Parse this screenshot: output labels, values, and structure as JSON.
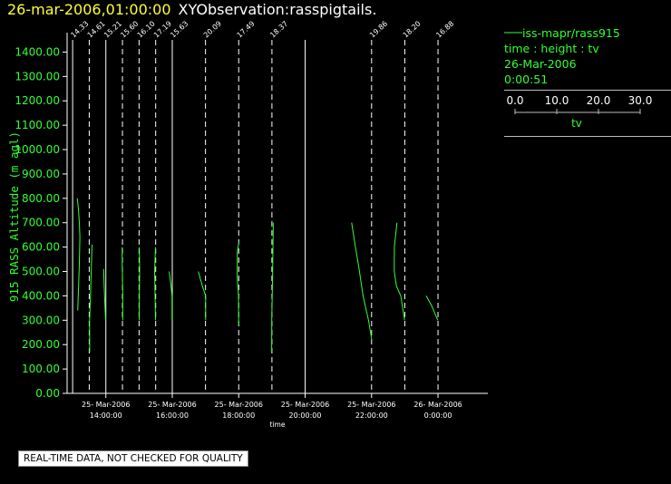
{
  "header": {
    "datetime": "26-mar-2006,01:00:00",
    "title": "XYObservation:rasspigtails."
  },
  "legend": {
    "series": "iss-mapr/rass915",
    "axes": "time : height : tv",
    "date": "26-Mar-2006",
    "time": "0:00:51",
    "scale_ticks": [
      "0.0",
      "10.0",
      "20.0",
      "30.0"
    ],
    "scale_label": "tv"
  },
  "note": "REAL-TIME DATA, NOT CHECKED FOR QUALITY",
  "colors": {
    "trace": "#33ff33",
    "axis": "#ffffff",
    "date_text": "#ffff33"
  },
  "chart_data": {
    "type": "line",
    "xlabel": "time",
    "ylabel": "915 RASS Altitude (m agl)",
    "xlim": [
      "25-Mar-2006 12:50",
      "26-Mar-2006 01:30"
    ],
    "ylim": [
      0,
      1450
    ],
    "y_ticks": [
      0,
      100,
      200,
      300,
      400,
      500,
      600,
      700,
      800,
      900,
      1000,
      1100,
      1200,
      1300,
      1400
    ],
    "y_tick_labels": [
      "0.00",
      "100.00",
      "200.00",
      "300.00",
      "400.00",
      "500.00",
      "600.00",
      "700.00",
      "800.00",
      "900.00",
      "1000.00",
      "1100.00",
      "1200.00",
      "1300.00",
      "1400.00"
    ],
    "x_ticks": [
      {
        "time": "25-Mar-2006 14:00",
        "date": "25-Mar-2006",
        "label": "14:00:00"
      },
      {
        "time": "25-Mar-2006 16:00",
        "date": "25-Mar-2006",
        "label": "16:00:00"
      },
      {
        "time": "25-Mar-2006 18:00",
        "date": "25-Mar-2006",
        "label": "18:00:00"
      },
      {
        "time": "25-Mar-2006 20:00",
        "date": "25-Mar-2006",
        "label": "20:00:00"
      },
      {
        "time": "25-Mar-2006 22:00",
        "date": "25-Mar-2006",
        "label": "22:00:00"
      },
      {
        "time": "26-Mar-2006 00:00",
        "date": "26-Mar-2006",
        "label": "0:00:00"
      }
    ],
    "baselines": [
      {
        "time": "25-Mar-2006 13:00",
        "label": "14.33",
        "dashed": false
      },
      {
        "time": "25-Mar-2006 13:30",
        "label": "14.61",
        "dashed": true
      },
      {
        "time": "25-Mar-2006 14:00",
        "label": "15.21",
        "dashed": false
      },
      {
        "time": "25-Mar-2006 14:30",
        "label": "15.60",
        "dashed": true
      },
      {
        "time": "25-Mar-2006 15:00",
        "label": "16.10",
        "dashed": true
      },
      {
        "time": "25-Mar-2006 15:30",
        "label": "17.19",
        "dashed": true
      },
      {
        "time": "25-Mar-2006 16:00",
        "label": "15.63",
        "dashed": false
      },
      {
        "time": "25-Mar-2006 17:00",
        "label": "20.09",
        "dashed": true
      },
      {
        "time": "25-Mar-2006 18:00",
        "label": "17.49",
        "dashed": true
      },
      {
        "time": "25-Mar-2006 19:00",
        "label": "18.37",
        "dashed": true
      },
      {
        "time": "25-Mar-2006 20:00",
        "label": "",
        "dashed": false
      },
      {
        "time": "25-Mar-2006 22:00",
        "label": "19.86",
        "dashed": true
      },
      {
        "time": "25-Mar-2006 23:00",
        "label": "18.20",
        "dashed": true
      },
      {
        "time": "26-Mar-2006 00:00",
        "label": "16.88",
        "dashed": true
      }
    ],
    "series": [
      {
        "time": "25-Mar-2006 13:00",
        "points": [
          [
            19.0,
            340
          ],
          [
            19.6,
            410
          ],
          [
            20.4,
            520
          ],
          [
            21.0,
            640
          ],
          [
            20.5,
            700
          ],
          [
            19.6,
            760
          ],
          [
            18.6,
            800
          ]
        ]
      },
      {
        "time": "25-Mar-2006 13:30",
        "points": [
          [
            15.0,
            170
          ],
          [
            14.9,
            300
          ],
          [
            15.8,
            400
          ],
          [
            16.6,
            520
          ],
          [
            17.2,
            610
          ]
        ]
      },
      {
        "time": "25-Mar-2006 14:00",
        "points": [
          [
            15.0,
            300
          ],
          [
            14.2,
            380
          ],
          [
            13.6,
            450
          ],
          [
            13.2,
            510
          ]
        ]
      },
      {
        "time": "25-Mar-2006 14:30",
        "points": [
          [
            15.9,
            300
          ],
          [
            15.9,
            400
          ],
          [
            15.5,
            500
          ],
          [
            15.3,
            600
          ]
        ]
      },
      {
        "time": "25-Mar-2006 15:00",
        "points": [
          [
            16.2,
            300
          ],
          [
            16.4,
            400
          ],
          [
            16.6,
            500
          ],
          [
            16.4,
            600
          ]
        ]
      },
      {
        "time": "25-Mar-2006 15:30",
        "points": [
          [
            17.0,
            300
          ],
          [
            16.6,
            400
          ],
          [
            16.2,
            500
          ],
          [
            17.0,
            600
          ]
        ]
      },
      {
        "time": "25-Mar-2006 16:00",
        "points": [
          [
            15.4,
            300
          ],
          [
            15.4,
            400
          ],
          [
            14.2,
            450
          ],
          [
            12.8,
            500
          ]
        ]
      },
      {
        "time": "25-Mar-2006 17:00",
        "points": [
          [
            20.2,
            300
          ],
          [
            20.2,
            400
          ],
          [
            18.0,
            430
          ],
          [
            15.3,
            470
          ],
          [
            13.5,
            500
          ]
        ]
      },
      {
        "time": "25-Mar-2006 18:00",
        "points": [
          [
            17.4,
            280
          ],
          [
            17.3,
            400
          ],
          [
            16.1,
            480
          ],
          [
            16.2,
            580
          ],
          [
            17.6,
            620
          ]
        ]
      },
      {
        "time": "25-Mar-2006 19:00",
        "points": [
          [
            18.1,
            170
          ],
          [
            18.2,
            300
          ],
          [
            18.8,
            430
          ],
          [
            19.2,
            560
          ],
          [
            19.6,
            700
          ]
        ]
      },
      {
        "time": "25-Mar-2006 22:00",
        "points": [
          [
            20.0,
            220
          ],
          [
            17.0,
            300
          ],
          [
            12.0,
            400
          ],
          [
            8.0,
            520
          ],
          [
            5.0,
            600
          ],
          [
            1.5,
            700
          ]
        ]
      },
      {
        "time": "25-Mar-2006 23:00",
        "points": [
          [
            18.0,
            300
          ],
          [
            14.5,
            400
          ],
          [
            10.5,
            440
          ],
          [
            8.5,
            500
          ],
          [
            8.6,
            600
          ],
          [
            11.0,
            700
          ]
        ]
      },
      {
        "time": "26-Mar-2006 00:00",
        "points": [
          [
            16.7,
            300
          ],
          [
            11.0,
            360
          ],
          [
            6.0,
            400
          ]
        ]
      }
    ]
  }
}
